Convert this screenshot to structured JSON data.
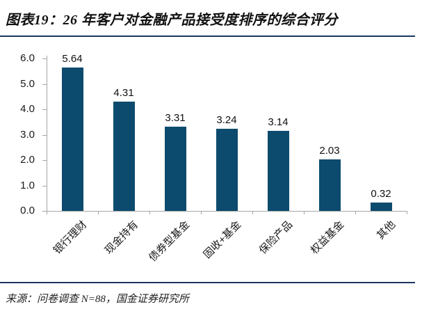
{
  "header": {
    "title": "图表19：26 年客户对金融产品接受度排序的综合评分"
  },
  "footer": {
    "source": "来源：问卷调查 N=88，国金证券研究所"
  },
  "colors": {
    "bar": "#0d4b6e",
    "rule": "#17375e",
    "axis": "#a6a6a6",
    "text": "#1a1a1a"
  },
  "chart_data": {
    "type": "bar",
    "title": "图表19：26 年客户对金融产品接受度排序的综合评分",
    "categories": [
      "银行理财",
      "现金持有",
      "债券型基金",
      "固收+基金",
      "保险产品",
      "权益基金",
      "其他"
    ],
    "values": [
      5.64,
      4.31,
      3.31,
      3.24,
      3.14,
      2.03,
      0.32
    ],
    "value_labels": [
      "5.64",
      "4.31",
      "3.31",
      "3.24",
      "3.14",
      "2.03",
      "0.32"
    ],
    "y_ticks": [
      "6.0",
      "5.0",
      "4.0",
      "3.0",
      "2.0",
      "1.0",
      "0.0"
    ],
    "ylim": [
      0,
      6
    ],
    "xlabel": "",
    "ylabel": "",
    "grid": false,
    "legend_position": "none",
    "bar_color": "#0d4b6e",
    "source": "来源：问卷调查 N=88，国金证券研究所"
  }
}
